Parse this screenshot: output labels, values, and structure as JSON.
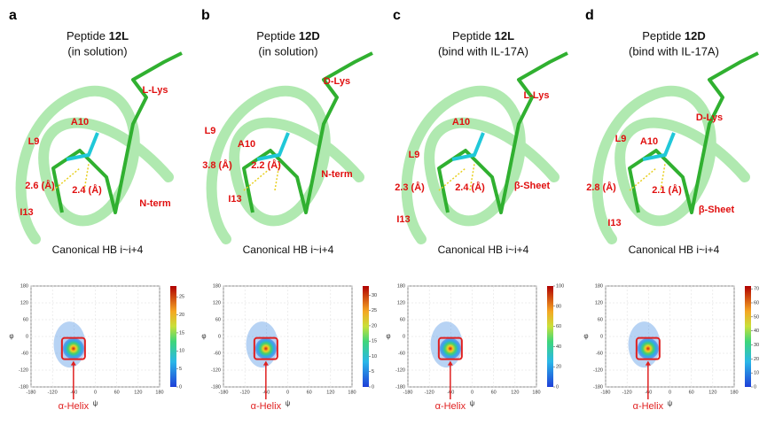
{
  "panels": [
    {
      "letter": "a",
      "title_prefix": "Peptide",
      "title_bold": "12L",
      "subtitle": "(in solution)",
      "labels": [
        "L-Lys",
        "A10",
        "L9",
        "2.6 (Å)",
        "2.4 (Å)",
        "I13",
        "N-term"
      ],
      "caption": "Canonical HB i~i+4",
      "plot": {
        "xlabel": "ψ",
        "ylabel": "φ",
        "xticks": [
          -180,
          -120,
          -60,
          0,
          60,
          120,
          180
        ],
        "yticks": [
          -180,
          -120,
          -60,
          0,
          60,
          120,
          180
        ],
        "colorbar_ticks": [
          0,
          5,
          10,
          15,
          20,
          25
        ],
        "colorbar_max": 28,
        "annotation": "α-Helix"
      }
    },
    {
      "letter": "b",
      "title_prefix": "Peptide",
      "title_bold": "12D",
      "subtitle": "(in solution)",
      "labels": [
        "D-Lys",
        "L9",
        "A10",
        "3.8 (Å)",
        "2.2 (Å)",
        "N-term",
        "I13"
      ],
      "caption": "Canonical HB i~i+4",
      "plot": {
        "xlabel": "ψ",
        "ylabel": "φ",
        "xticks": [
          -180,
          -120,
          -60,
          0,
          60,
          120,
          180
        ],
        "yticks": [
          -180,
          -120,
          -60,
          0,
          60,
          120,
          180
        ],
        "colorbar_ticks": [
          0,
          5,
          10,
          15,
          20,
          25,
          30
        ],
        "colorbar_max": 33,
        "annotation": "α-Helix"
      }
    },
    {
      "letter": "c",
      "title_prefix": "Peptide",
      "title_bold": "12L",
      "subtitle": "(bind with IL-17A)",
      "labels": [
        "L-Lys",
        "A10",
        "L9",
        "2.3 (Å)",
        "2.4 (Å)",
        "β-Sheet",
        "I13"
      ],
      "caption": "Canonical HB i~i+4",
      "plot": {
        "xlabel": "ψ",
        "ylabel": "φ",
        "xticks": [
          -180,
          -120,
          -60,
          0,
          60,
          120,
          180
        ],
        "yticks": [
          -180,
          -120,
          -60,
          0,
          60,
          120,
          180
        ],
        "colorbar_ticks": [
          0,
          20,
          40,
          60,
          80,
          100
        ],
        "colorbar_max": 100,
        "annotation": "α-Helix"
      }
    },
    {
      "letter": "d",
      "title_prefix": "Peptide",
      "title_bold": "12D",
      "subtitle": "(bind with IL-17A)",
      "labels": [
        "D-Lys",
        "L9",
        "A10",
        "2.8 (Å)",
        "2.1 (Å)",
        "β-Sheet",
        "I13"
      ],
      "caption": "Canonical HB i~i+4",
      "plot": {
        "xlabel": "ψ",
        "ylabel": "φ",
        "xticks": [
          -180,
          -120,
          -60,
          0,
          60,
          120,
          180
        ],
        "yticks": [
          -180,
          -120,
          -60,
          0,
          60,
          120,
          180
        ],
        "colorbar_ticks": [
          0,
          10,
          20,
          30,
          40,
          50,
          60,
          70
        ],
        "colorbar_max": 72,
        "annotation": "α-Helix"
      }
    }
  ]
}
